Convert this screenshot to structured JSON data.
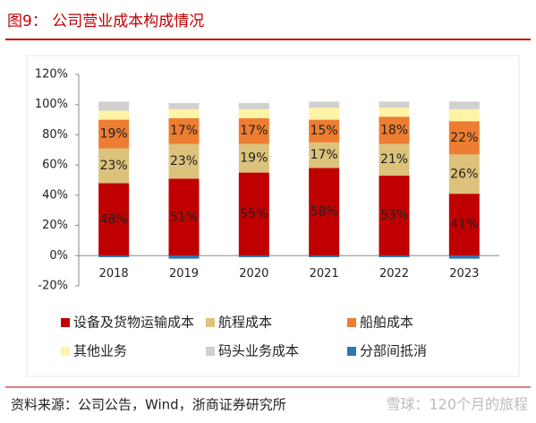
{
  "chart_data": {
    "type": "stacked-bar",
    "title": "图9：  公司营业成本构成情况",
    "categories": [
      "2018",
      "2019",
      "2020",
      "2021",
      "2022",
      "2023"
    ],
    "series": [
      {
        "name": "设备及货物运输成本",
        "color": "#c00000",
        "values": [
          48,
          51,
          55,
          58,
          53,
          41
        ],
        "value_labels": [
          "48%",
          "51%",
          "55%",
          "58%",
          "53%",
          "41%"
        ]
      },
      {
        "name": "航程成本",
        "color": "#dcc27a",
        "values": [
          23,
          23,
          19,
          17,
          21,
          26
        ],
        "value_labels": [
          "23%",
          "23%",
          "19%",
          "17%",
          "21%",
          "26%"
        ]
      },
      {
        "name": "船舶成本",
        "color": "#ed7d31",
        "values": [
          19,
          17,
          17,
          15,
          18,
          22
        ],
        "value_labels": [
          "19%",
          "17%",
          "17%",
          "15%",
          "18%",
          "22%"
        ]
      },
      {
        "name": "其他业务",
        "color": "#fff3a6",
        "values": [
          6,
          6,
          6,
          8,
          6,
          8
        ]
      },
      {
        "name": "码头业务成本",
        "color": "#d0d0d0",
        "values": [
          6,
          4,
          4,
          4,
          4,
          5
        ]
      },
      {
        "name": "分部间抵消",
        "color": "#2e75b6",
        "values": [
          -1,
          -2,
          -1,
          -1,
          -1,
          -2
        ]
      }
    ],
    "ylim": [
      -20,
      120
    ],
    "yticks": [
      {
        "value": -20,
        "label": "-20%"
      },
      {
        "value": 0,
        "label": "0%"
      },
      {
        "value": 20,
        "label": "20%"
      },
      {
        "value": 40,
        "label": "40%"
      },
      {
        "value": 60,
        "label": "60%"
      },
      {
        "value": 80,
        "label": "80%"
      },
      {
        "value": 100,
        "label": "100%"
      },
      {
        "value": 120,
        "label": "120%"
      }
    ],
    "source": "资料来源：公司公告，Wind，浙商证券研究所",
    "watermark": "雪球：120个月的旅程"
  }
}
